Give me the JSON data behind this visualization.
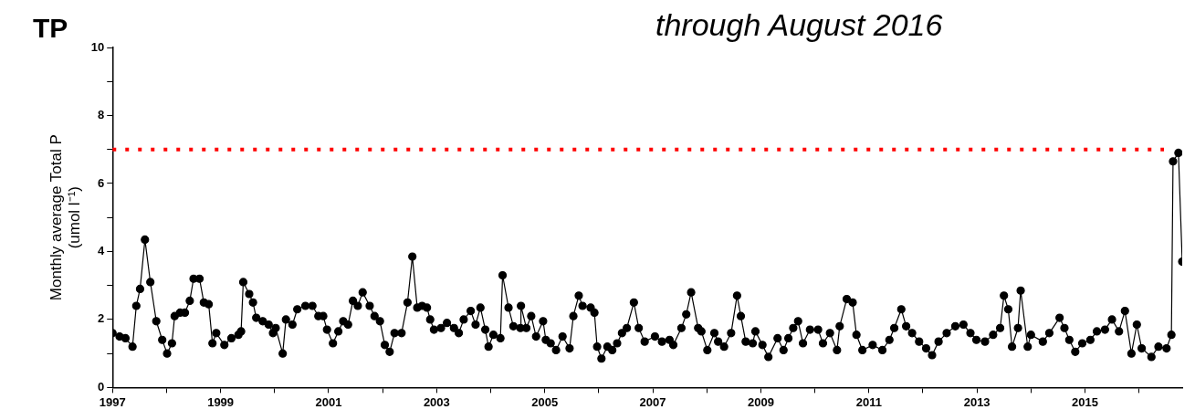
{
  "chart_data": {
    "type": "line",
    "title": "through August 2016",
    "ylabel": "Monthly average Total P (umol l⁻¹)",
    "annotations": [
      "TP"
    ],
    "x": [
      1997.0,
      1997.13,
      1997.24,
      1997.37,
      1997.44,
      1997.51,
      1997.6,
      1997.7,
      1997.81,
      1997.92,
      1998.01,
      1998.1,
      1998.15,
      1998.25,
      1998.34,
      1998.43,
      1998.5,
      1998.61,
      1998.69,
      1998.78,
      1998.85,
      1998.92,
      1999.07,
      1999.2,
      1999.33,
      1999.38,
      1999.42,
      1999.53,
      1999.6,
      1999.66,
      1999.78,
      1999.89,
      1999.97,
      2000.02,
      2000.15,
      2000.21,
      2000.33,
      2000.42,
      2000.57,
      2000.7,
      2000.81,
      2000.9,
      2000.97,
      2001.08,
      2001.18,
      2001.27,
      2001.36,
      2001.45,
      2001.54,
      2001.63,
      2001.76,
      2001.85,
      2001.95,
      2002.04,
      2002.13,
      2002.22,
      2002.35,
      2002.46,
      2002.55,
      2002.64,
      2002.73,
      2002.82,
      2002.88,
      2002.95,
      2003.08,
      2003.19,
      2003.32,
      2003.41,
      2003.5,
      2003.63,
      2003.72,
      2003.81,
      2003.9,
      2003.96,
      2004.05,
      2004.18,
      2004.22,
      2004.33,
      2004.42,
      2004.55,
      2004.56,
      2004.66,
      2004.75,
      2004.84,
      2004.97,
      2005.02,
      2005.11,
      2005.21,
      2005.33,
      2005.46,
      2005.53,
      2005.63,
      2005.7,
      2005.85,
      2005.92,
      2005.97,
      2006.05,
      2006.16,
      2006.25,
      2006.34,
      2006.43,
      2006.52,
      2006.65,
      2006.74,
      2006.85,
      2007.04,
      2007.17,
      2007.31,
      2007.38,
      2007.53,
      2007.62,
      2007.71,
      2007.84,
      2007.9,
      2008.01,
      2008.14,
      2008.21,
      2008.32,
      2008.45,
      2008.56,
      2008.63,
      2008.72,
      2008.85,
      2008.9,
      2009.03,
      2009.14,
      2009.31,
      2009.42,
      2009.51,
      2009.6,
      2009.69,
      2009.78,
      2009.91,
      2010.06,
      2010.15,
      2010.28,
      2010.41,
      2010.46,
      2010.59,
      2010.7,
      2010.77,
      2010.88,
      2011.07,
      2011.25,
      2011.38,
      2011.47,
      2011.6,
      2011.69,
      2011.8,
      2011.93,
      2012.06,
      2012.17,
      2012.29,
      2012.44,
      2012.6,
      2012.75,
      2012.88,
      2012.99,
      2013.15,
      2013.3,
      2013.43,
      2013.5,
      2013.58,
      2013.65,
      2013.76,
      2013.81,
      2013.94,
      2014.0,
      2014.22,
      2014.34,
      2014.53,
      2014.62,
      2014.71,
      2014.82,
      2014.95,
      2015.1,
      2015.22,
      2015.37,
      2015.5,
      2015.63,
      2015.74,
      2015.86,
      2015.96,
      2016.05,
      2016.23,
      2016.36,
      2016.51,
      2016.6,
      2016.63,
      2016.73,
      2016.8
    ],
    "values": [
      1.6,
      1.5,
      1.45,
      1.2,
      2.4,
      2.9,
      4.35,
      3.1,
      1.95,
      1.4,
      1.0,
      1.3,
      2.1,
      2.2,
      2.2,
      2.55,
      3.2,
      3.2,
      2.5,
      2.45,
      1.3,
      1.6,
      1.25,
      1.45,
      1.55,
      1.65,
      3.1,
      2.75,
      2.5,
      2.05,
      1.95,
      1.85,
      1.6,
      1.75,
      1.0,
      2.0,
      1.85,
      2.3,
      2.4,
      2.4,
      2.1,
      2.1,
      1.7,
      1.3,
      1.65,
      1.95,
      1.85,
      2.55,
      2.4,
      2.8,
      2.4,
      2.1,
      1.95,
      1.25,
      1.05,
      1.6,
      1.6,
      2.5,
      3.85,
      2.35,
      2.4,
      2.35,
      2.0,
      1.7,
      1.75,
      1.9,
      1.75,
      1.6,
      2.0,
      2.25,
      1.85,
      2.35,
      1.7,
      1.2,
      1.55,
      1.45,
      3.3,
      2.35,
      1.8,
      1.75,
      2.4,
      1.75,
      2.1,
      1.5,
      1.95,
      1.4,
      1.3,
      1.1,
      1.5,
      1.15,
      2.1,
      2.7,
      2.4,
      2.35,
      2.2,
      1.2,
      0.85,
      1.2,
      1.1,
      1.3,
      1.6,
      1.75,
      2.5,
      1.75,
      1.35,
      1.5,
      1.35,
      1.4,
      1.25,
      1.75,
      2.15,
      2.8,
      1.75,
      1.65,
      1.1,
      1.6,
      1.35,
      1.2,
      1.6,
      2.7,
      2.1,
      1.35,
      1.3,
      1.65,
      1.25,
      0.9,
      1.45,
      1.1,
      1.45,
      1.75,
      1.95,
      1.3,
      1.7,
      1.7,
      1.3,
      1.6,
      1.1,
      1.8,
      2.6,
      2.5,
      1.55,
      1.1,
      1.25,
      1.1,
      1.4,
      1.75,
      2.3,
      1.8,
      1.6,
      1.35,
      1.15,
      0.95,
      1.35,
      1.6,
      1.8,
      1.85,
      1.6,
      1.4,
      1.35,
      1.55,
      1.75,
      2.7,
      2.3,
      1.2,
      1.75,
      2.85,
      1.2,
      1.55,
      1.35,
      1.6,
      2.05,
      1.75,
      1.4,
      1.05,
      1.3,
      1.4,
      1.65,
      1.7,
      2.0,
      1.65,
      2.25,
      1.0,
      1.85,
      1.15,
      0.9,
      1.2,
      1.15,
      1.55,
      6.65,
      6.9,
      3.7
    ],
    "color": "#000000",
    "marker": "circle",
    "xlim": [
      1997,
      2016.8
    ],
    "xticks": [
      1997,
      {
        "value": 1998,
        "label": null
      },
      1999,
      {
        "value": 2000,
        "label": null
      },
      2001,
      {
        "value": 2002,
        "label": null
      },
      2003,
      {
        "value": 2004,
        "label": null
      },
      2005,
      {
        "value": 2006,
        "label": null
      },
      2007,
      {
        "value": 2008,
        "label": null
      },
      2009,
      {
        "value": 2010,
        "label": null
      },
      2011,
      {
        "value": 2012,
        "label": null
      },
      2013,
      {
        "value": 2014,
        "label": null
      },
      2015,
      {
        "value": 2016,
        "label": null
      }
    ],
    "ylim": [
      0,
      10
    ],
    "yticks": [
      0,
      {
        "value": 1,
        "label": null
      },
      2,
      {
        "value": 3,
        "label": null
      },
      4,
      {
        "value": 5,
        "label": null
      },
      6,
      {
        "value": 7,
        "label": null
      },
      8,
      {
        "value": 9,
        "label": null
      },
      10
    ],
    "ref_lines": [
      {
        "axis": "y",
        "value": 7,
        "color": "#ff0000",
        "line_style": "dotted"
      }
    ]
  }
}
